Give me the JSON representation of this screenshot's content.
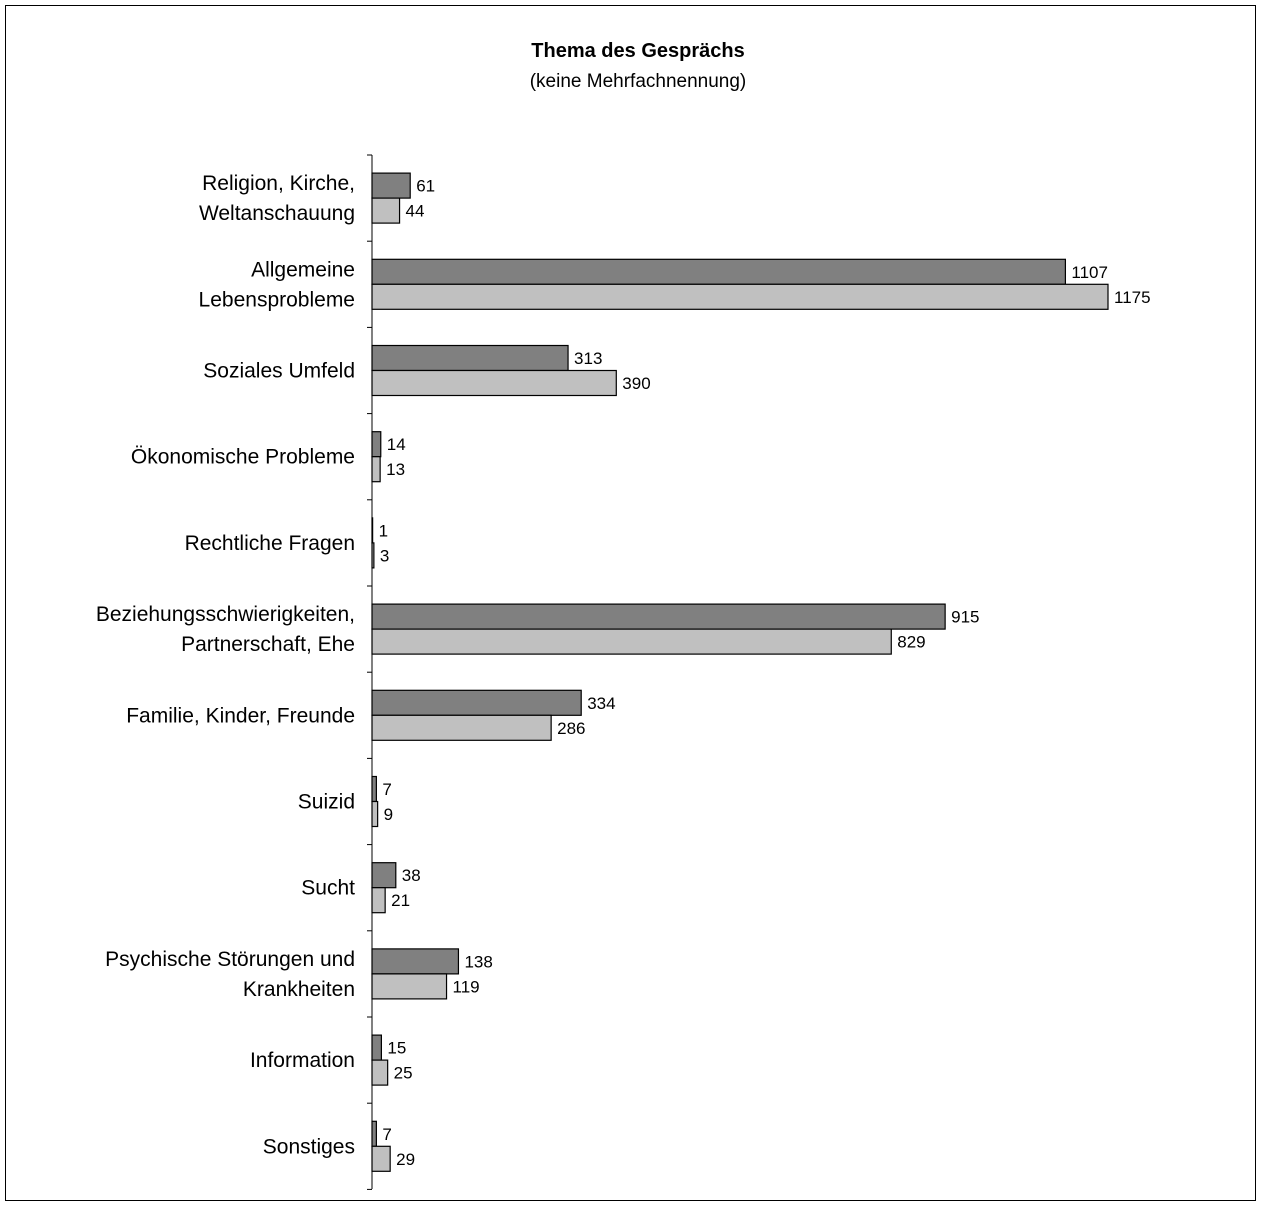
{
  "chart_data": {
    "type": "bar",
    "orientation": "horizontal",
    "title": "Thema des Gesprächs",
    "subtitle": "(keine Mehrfachnennung)",
    "categories": [
      [
        "Religion, Kirche,",
        "Weltanschauung"
      ],
      [
        "Allgemeine",
        "Lebensprobleme"
      ],
      [
        "Soziales Umfeld"
      ],
      [
        "Ökonomische Probleme"
      ],
      [
        "Rechtliche Fragen"
      ],
      [
        "Beziehungsschwierigkeiten,",
        "Partnerschaft, Ehe"
      ],
      [
        "Familie, Kinder, Freunde"
      ],
      [
        "Suizid"
      ],
      [
        "Sucht"
      ],
      [
        "Psychische Störungen und",
        "Krankheiten"
      ],
      [
        "Information"
      ],
      [
        "Sonstiges"
      ]
    ],
    "series": [
      {
        "values": [
          61,
          1107,
          313,
          14,
          1,
          915,
          334,
          7,
          38,
          138,
          15,
          7
        ],
        "color": "#808080"
      },
      {
        "values": [
          44,
          1175,
          390,
          13,
          3,
          829,
          286,
          9,
          21,
          119,
          25,
          29
        ],
        "color": "#c0c0c0"
      }
    ],
    "xlim": [
      0,
      1175
    ],
    "grid": false,
    "legend": "none"
  }
}
